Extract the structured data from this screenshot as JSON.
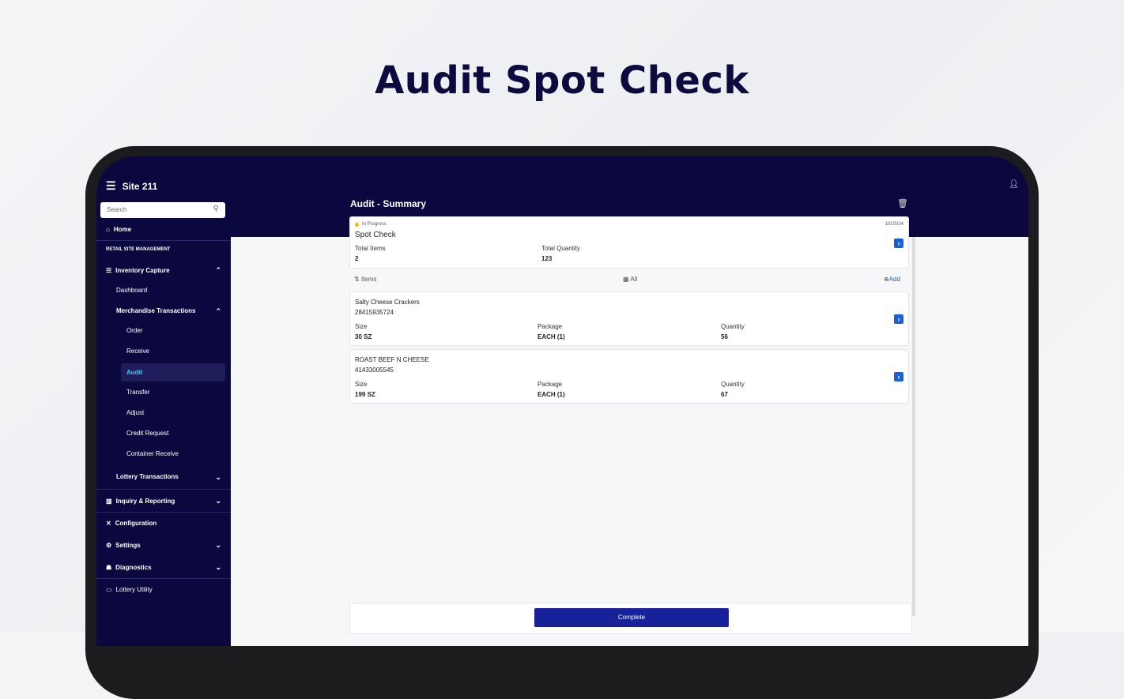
{
  "hero_title": "Audit Spot Check",
  "app": {
    "site": "Site 211",
    "search_placeholder": "Search"
  },
  "sidebar": {
    "home": "Home",
    "section": "RETAIL SITE MANAGEMENT",
    "inventory": "Inventory Capture",
    "dashboard": "Dashboard",
    "merch": "Merchandise Transactions",
    "merch_items": [
      "Order",
      "Receive",
      "Audit",
      "Transfer",
      "Adjust",
      "Credit Request",
      "Container Receive"
    ],
    "lottery": "Lottery Transactions",
    "inquiry": "Inquiry & Reporting",
    "configuration": "Configuration",
    "settings": "Settings",
    "diagnostics": "Diagnostics",
    "lottery_utility": "Lottery Utility",
    "active": "Audit"
  },
  "header": {
    "title": "Audit - Summary"
  },
  "summary": {
    "status": "In Progress",
    "status_color": "#f5b417",
    "date": "10/25/24",
    "name": "Spot Check",
    "total_items_label": "Total Items",
    "total_items": "2",
    "total_qty_label": "Total Quantity",
    "total_qty": "123"
  },
  "toolbar": {
    "items": "Items",
    "filter": "All",
    "add": "Add"
  },
  "items": [
    {
      "name": "Salty Cheese Crackers",
      "code": "28415935724",
      "size_label": "Size",
      "size": "30 SZ",
      "package_label": "Package",
      "package": "EACH (1)",
      "qty_label": "Quantity",
      "qty": "56"
    },
    {
      "name": "ROAST BEEF N CHEESE",
      "code": "41433005545",
      "size_label": "Size",
      "size": "199 SZ",
      "package_label": "Package",
      "package": "EACH (1)",
      "qty_label": "Quantity",
      "qty": "67"
    }
  ],
  "complete_button": "Complete"
}
